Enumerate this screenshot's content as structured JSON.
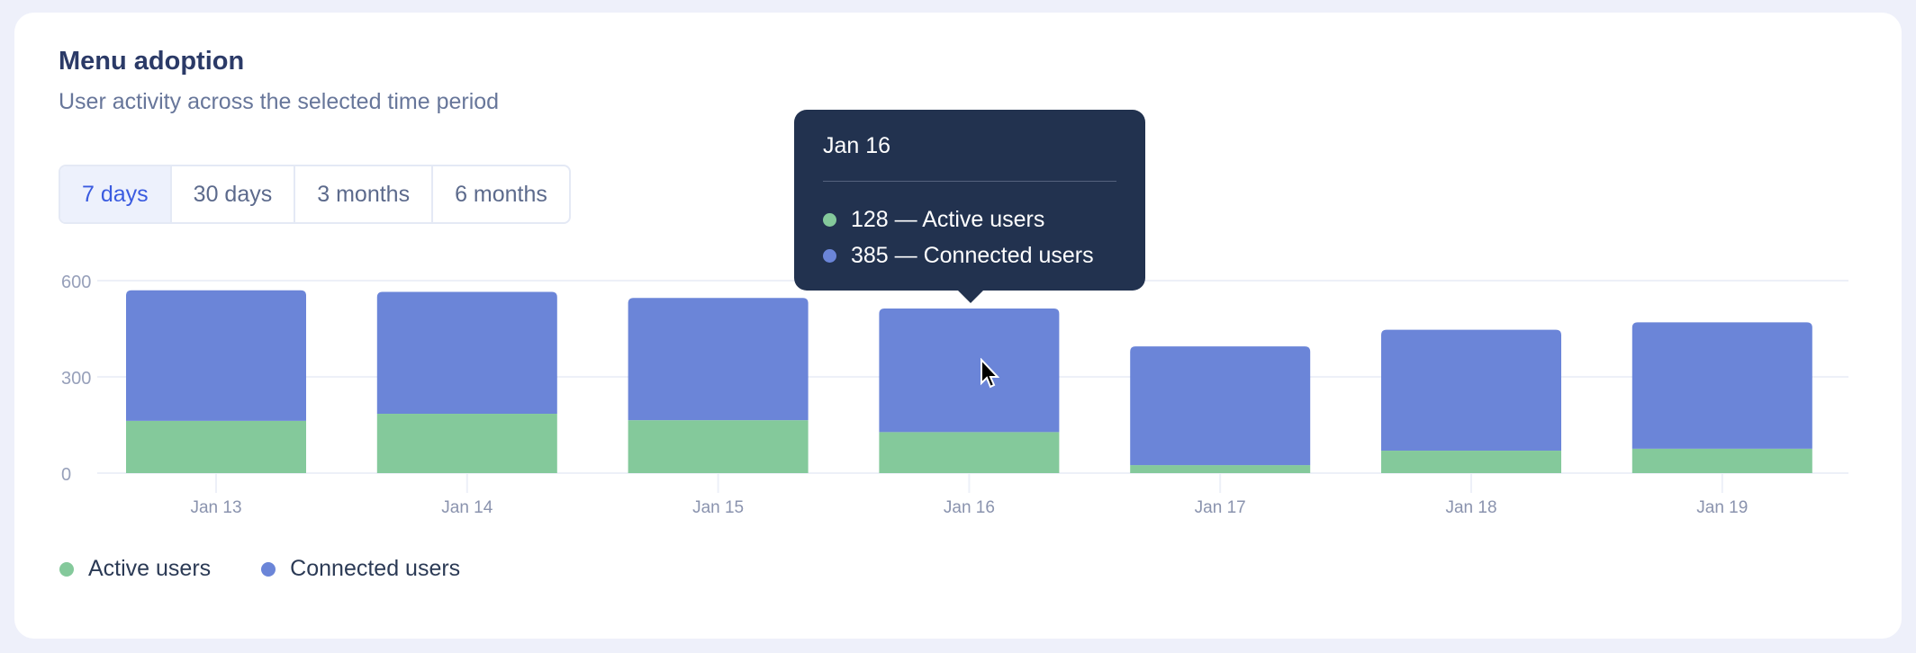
{
  "header": {
    "title": "Menu adoption",
    "subtitle": "User activity across the selected time period"
  },
  "range_tabs": [
    {
      "label": "7 days",
      "selected": true
    },
    {
      "label": "30 days"
    },
    {
      "label": "3 months"
    },
    {
      "label": "6 months"
    }
  ],
  "colors": {
    "active": "#84C99B",
    "connected": "#6B85D8",
    "tooltip_bg": "#22324F"
  },
  "chart_data": {
    "type": "bar",
    "stacked": true,
    "categories": [
      "Jan 13",
      "Jan 14",
      "Jan 15",
      "Jan 16",
      "Jan 17",
      "Jan 18",
      "Jan 19"
    ],
    "series": [
      {
        "name": "Active users",
        "values": [
          163,
          185,
          165,
          128,
          25,
          70,
          76
        ]
      },
      {
        "name": "Connected users",
        "values": [
          407,
          380,
          381,
          385,
          370,
          377,
          394
        ]
      }
    ],
    "yticks": [
      "0",
      "300",
      "600"
    ],
    "ylim": [
      0,
      600
    ],
    "grid": true,
    "legend": "bottom-left"
  },
  "tooltip": {
    "date": "Jan 16",
    "rows": [
      {
        "text": "128 — Active users"
      },
      {
        "text": "385 — Connected users"
      }
    ]
  },
  "legend": {
    "items": [
      "Active users",
      "Connected users"
    ]
  }
}
